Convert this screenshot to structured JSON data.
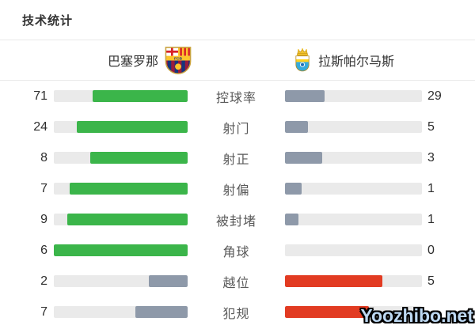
{
  "page": {
    "title": "技术统计",
    "watermark": "Yoozhibo.net"
  },
  "teams": {
    "home": {
      "name": "巴塞罗那",
      "crest_icon": "barcelona-crest"
    },
    "away": {
      "name": "拉斯帕尔马斯",
      "crest_icon": "las-palmas-crest"
    }
  },
  "colors": {
    "home_highlight": "#3bb54a",
    "away_highlight": "#e23b22",
    "neutral_fill": "#8e99a9",
    "bar_track": "#eaeaea"
  },
  "rows": [
    {
      "label": "控球率",
      "home_value": "71",
      "away_value": "29",
      "home_fill_pct": 71,
      "away_fill_pct": 29,
      "home_color": "home_highlight",
      "away_color": "neutral_fill"
    },
    {
      "label": "射门",
      "home_value": "24",
      "away_value": "5",
      "home_fill_pct": 83,
      "away_fill_pct": 17,
      "home_color": "home_highlight",
      "away_color": "neutral_fill"
    },
    {
      "label": "射正",
      "home_value": "8",
      "away_value": "3",
      "home_fill_pct": 73,
      "away_fill_pct": 27,
      "home_color": "home_highlight",
      "away_color": "neutral_fill"
    },
    {
      "label": "射偏",
      "home_value": "7",
      "away_value": "1",
      "home_fill_pct": 88,
      "away_fill_pct": 12,
      "home_color": "home_highlight",
      "away_color": "neutral_fill"
    },
    {
      "label": "被封堵",
      "home_value": "9",
      "away_value": "1",
      "home_fill_pct": 90,
      "away_fill_pct": 10,
      "home_color": "home_highlight",
      "away_color": "neutral_fill"
    },
    {
      "label": "角球",
      "home_value": "6",
      "away_value": "0",
      "home_fill_pct": 100,
      "away_fill_pct": 0,
      "home_color": "home_highlight",
      "away_color": "neutral_fill"
    },
    {
      "label": "越位",
      "home_value": "2",
      "away_value": "5",
      "home_fill_pct": 29,
      "away_fill_pct": 71,
      "home_color": "neutral_fill",
      "away_color": "away_highlight"
    },
    {
      "label": "犯规",
      "home_value": "7",
      "away_value": "",
      "home_fill_pct": 39,
      "away_fill_pct": 61,
      "home_color": "neutral_fill",
      "away_color": "away_highlight"
    }
  ],
  "chart_data": {
    "type": "bar",
    "title": "技术统计",
    "categories": [
      "控球率",
      "射门",
      "射正",
      "射偏",
      "被封堵",
      "角球",
      "越位",
      "犯规"
    ],
    "series": [
      {
        "name": "巴塞罗那",
        "values": [
          71,
          24,
          8,
          7,
          9,
          6,
          2,
          7
        ]
      },
      {
        "name": "拉斯帕尔马斯",
        "values": [
          29,
          5,
          3,
          1,
          1,
          0,
          5,
          null
        ]
      }
    ],
    "layout": "paired horizontal bars per category; home bars fill right-to-left in green (gray-blue when losing), away bars fill left-to-right in red when leading else gray-blue; numeric values at outer edges; category label centered; away fouls value obscured by watermark"
  }
}
